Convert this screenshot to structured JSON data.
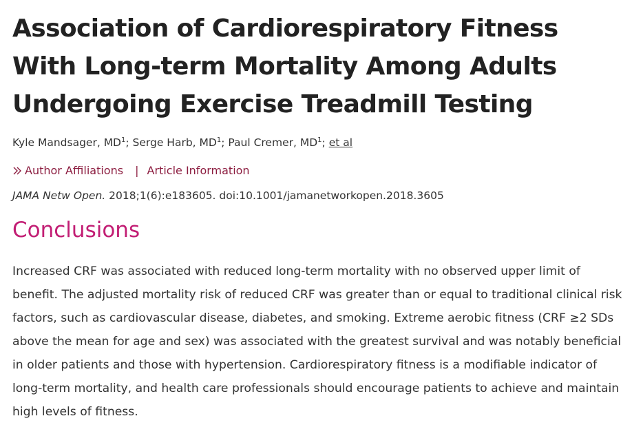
{
  "article": {
    "title": "Association of Cardiorespiratory Fitness With Long-term Mortality Among Adults Undergoing Exercise Treadmill Testing",
    "authors": [
      {
        "name": "Kyle Mandsager, MD",
        "affiliation": "1"
      },
      {
        "name": "Serge Harb, MD",
        "affiliation": "1"
      },
      {
        "name": "Paul Cremer, MD",
        "affiliation": "1"
      }
    ],
    "author_separator": "; ",
    "et_al": "et al",
    "links": {
      "affiliations": "Author Affiliations",
      "separator": "|",
      "article_info": "Article Information"
    },
    "citation": {
      "journal": "JAMA Netw Open.",
      "reference": " 2018;1(6):e183605. doi:10.1001/jamanetworkopen.2018.3605"
    },
    "section": {
      "heading": "Conclusions",
      "body": "Increased CRF was associated with reduced long-term mortality with no observed upper limit of benefit. The adjusted mortality risk of reduced CRF was greater than or equal to traditional clinical risk factors, such as cardiovascular disease, diabetes, and smoking. Extreme aerobic fitness (CRF ≥2 SDs above the mean for age and sex) was associated with the greatest survival and was notably beneficial in older patients and those with hypertension. Cardiorespiratory fitness is a modifiable indicator of long-term mortality, and health care professionals should encourage patients to achieve and maintain high levels of fitness."
    }
  },
  "icons": {
    "affiliations_toggle": "double-chevron-right-icon"
  },
  "colors": {
    "title": "#222222",
    "link": "#8c1d40",
    "heading": "#c21e74",
    "text": "#333333"
  }
}
